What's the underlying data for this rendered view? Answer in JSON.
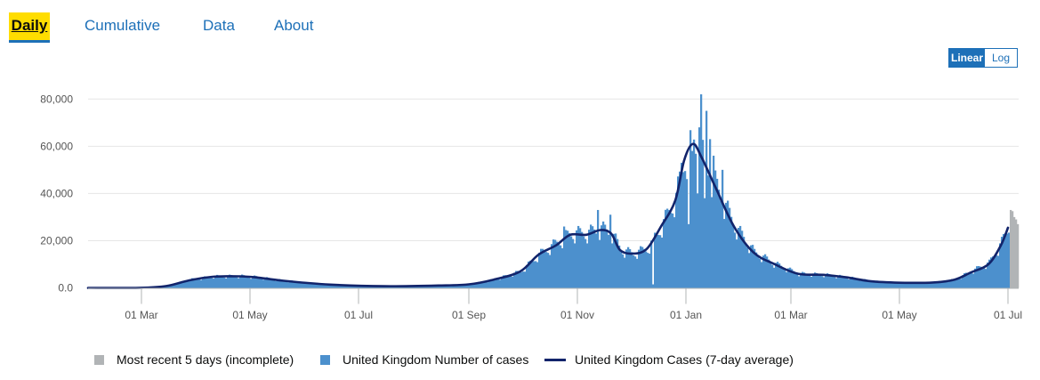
{
  "tabs": [
    {
      "label": "Daily",
      "active": true
    },
    {
      "label": "Cumulative",
      "active": false
    },
    {
      "label": "Data",
      "active": false
    },
    {
      "label": "About",
      "active": false
    }
  ],
  "scale_toggle": {
    "linear_label": "Linear",
    "log_label": "Log",
    "selected": "Linear"
  },
  "colors": {
    "bars": "#4c90cd",
    "incomplete": "#b1b4b6",
    "line": "#12246b",
    "grid": "#e6e6e6",
    "accent": "#1d70b8",
    "active_tab": "#ffdd00"
  },
  "chart_data": {
    "type": "bar",
    "title": "",
    "xlabel": "",
    "ylabel": "",
    "ylim": [
      0,
      85000
    ],
    "y_ticks": [
      {
        "value": 0,
        "label": "0.0"
      },
      {
        "value": 20000,
        "label": "20,000"
      },
      {
        "value": 40000,
        "label": "40,000"
      },
      {
        "value": 60000,
        "label": "60,000"
      },
      {
        "value": 80000,
        "label": "80,000"
      }
    ],
    "x_ticks": [
      "01 Mar",
      "01 May",
      "01 Jul",
      "01 Sep",
      "01 Nov",
      "01 Jan",
      "01 Mar",
      "01 May",
      "01 Jul"
    ],
    "x_range": [
      "2020-01-31",
      "2021-07-06"
    ],
    "grid": true,
    "legend_position": "bottom",
    "series": [
      {
        "name": "Most recent 5 days (incomplete)",
        "kind": "bar",
        "color": "#b1b4b6",
        "points": [
          [
            "2021-07-02",
            33000
          ],
          [
            "2021-07-03",
            32500
          ],
          [
            "2021-07-04",
            30000
          ],
          [
            "2021-07-05",
            29000
          ],
          [
            "2021-07-06",
            27000
          ]
        ]
      },
      {
        "name": "United Kingdom Number of cases",
        "kind": "bar",
        "color": "#4c90cd",
        "anchors": [
          [
            "2020-01-31",
            0
          ],
          [
            "2020-02-29",
            30
          ],
          [
            "2020-03-15",
            900
          ],
          [
            "2020-03-28",
            3500
          ],
          [
            "2020-04-10",
            4800
          ],
          [
            "2020-04-25",
            5000
          ],
          [
            "2020-05-05",
            4500
          ],
          [
            "2020-05-20",
            3000
          ],
          [
            "2020-06-15",
            1400
          ],
          [
            "2020-07-15",
            700
          ],
          [
            "2020-08-15",
            1100
          ],
          [
            "2020-09-01",
            1500
          ],
          [
            "2020-09-15",
            3500
          ],
          [
            "2020-09-30",
            7000
          ],
          [
            "2020-10-10",
            14000
          ],
          [
            "2020-10-20",
            19000
          ],
          [
            "2020-10-28",
            23000
          ],
          [
            "2020-11-06",
            23000
          ],
          [
            "2020-11-14",
            25000
          ],
          [
            "2020-11-20",
            23000
          ],
          [
            "2020-11-25",
            16000
          ],
          [
            "2020-12-02",
            14500
          ],
          [
            "2020-12-10",
            16500
          ],
          [
            "2020-12-18",
            26000
          ],
          [
            "2020-12-26",
            38000
          ],
          [
            "2020-12-31",
            55000
          ],
          [
            "2021-01-05",
            61000
          ],
          [
            "2021-01-10",
            55000
          ],
          [
            "2021-01-18",
            42000
          ],
          [
            "2021-01-28",
            26000
          ],
          [
            "2021-02-08",
            15000
          ],
          [
            "2021-02-20",
            10000
          ],
          [
            "2021-03-05",
            6000
          ],
          [
            "2021-03-20",
            5500
          ],
          [
            "2021-04-01",
            4500
          ],
          [
            "2021-04-15",
            2800
          ],
          [
            "2021-05-01",
            2200
          ],
          [
            "2021-05-20",
            2300
          ],
          [
            "2021-06-01",
            3500
          ],
          [
            "2021-06-10",
            7000
          ],
          [
            "2021-06-20",
            10500
          ],
          [
            "2021-06-27",
            19000
          ],
          [
            "2021-07-01",
            26000
          ]
        ],
        "peaks": [
          [
            "2020-10-24",
            26000
          ],
          [
            "2020-11-12",
            33000
          ],
          [
            "2020-11-19",
            31000
          ],
          [
            "2020-12-29",
            53000
          ],
          [
            "2021-01-04",
            58000
          ],
          [
            "2021-01-08",
            68000
          ],
          [
            "2021-01-09",
            82000
          ],
          [
            "2021-01-12",
            75000
          ],
          [
            "2021-01-14",
            63000
          ],
          [
            "2021-01-16",
            56000
          ],
          [
            "2021-01-21",
            50000
          ]
        ],
        "dips": [
          [
            "2020-12-13",
            1500
          ],
          [
            "2021-01-02",
            27000
          ],
          [
            "2021-01-07",
            40000
          ],
          [
            "2021-01-11",
            38000
          ]
        ]
      },
      {
        "name": "United Kingdom Cases (7-day average)",
        "kind": "line",
        "color": "#12246b",
        "points": [
          [
            "2020-01-31",
            0
          ],
          [
            "2020-02-29",
            20
          ],
          [
            "2020-03-15",
            800
          ],
          [
            "2020-03-28",
            3200
          ],
          [
            "2020-04-10",
            4700
          ],
          [
            "2020-04-25",
            4900
          ],
          [
            "2020-05-05",
            4400
          ],
          [
            "2020-05-20",
            3000
          ],
          [
            "2020-06-15",
            1400
          ],
          [
            "2020-07-15",
            700
          ],
          [
            "2020-08-15",
            1000
          ],
          [
            "2020-09-01",
            1500
          ],
          [
            "2020-09-15",
            3500
          ],
          [
            "2020-09-30",
            7000
          ],
          [
            "2020-10-10",
            14000
          ],
          [
            "2020-10-20",
            18000
          ],
          [
            "2020-10-28",
            22500
          ],
          [
            "2020-11-06",
            22500
          ],
          [
            "2020-11-14",
            24500
          ],
          [
            "2020-11-20",
            23000
          ],
          [
            "2020-11-25",
            16000
          ],
          [
            "2020-12-02",
            14500
          ],
          [
            "2020-12-10",
            16500
          ],
          [
            "2020-12-18",
            26000
          ],
          [
            "2020-12-26",
            37000
          ],
          [
            "2020-12-31",
            54000
          ],
          [
            "2021-01-05",
            61000
          ],
          [
            "2021-01-10",
            55000
          ],
          [
            "2021-01-18",
            42000
          ],
          [
            "2021-01-28",
            26000
          ],
          [
            "2021-02-08",
            15000
          ],
          [
            "2021-02-20",
            10000
          ],
          [
            "2021-03-05",
            6000
          ],
          [
            "2021-03-20",
            5500
          ],
          [
            "2021-04-01",
            4500
          ],
          [
            "2021-04-15",
            2800
          ],
          [
            "2021-05-01",
            2200
          ],
          [
            "2021-05-20",
            2300
          ],
          [
            "2021-06-01",
            3500
          ],
          [
            "2021-06-10",
            6500
          ],
          [
            "2021-06-20",
            10000
          ],
          [
            "2021-06-27",
            18000
          ],
          [
            "2021-07-01",
            25500
          ]
        ]
      }
    ]
  },
  "legend": [
    {
      "label": "Most recent 5 days (incomplete)",
      "color": "#b1b4b6",
      "kind": "square"
    },
    {
      "label": "United Kingdom Number of cases",
      "color": "#4c90cd",
      "kind": "square"
    },
    {
      "label": "United Kingdom Cases (7-day average)",
      "color": "#12246b",
      "kind": "line"
    }
  ]
}
